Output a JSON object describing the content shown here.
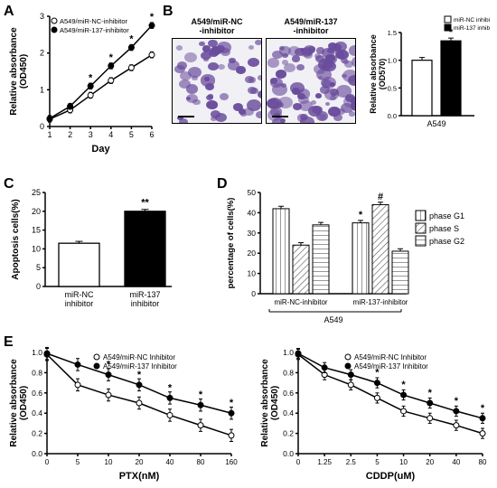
{
  "colors": {
    "axis": "#000000",
    "bg": "#ffffff",
    "black_fill": "#000000",
    "white_fill": "#ffffff",
    "hatch1": "#d0d0d0",
    "hatch2": "#e8e8e8",
    "hatch3": "#f0f0f0",
    "violet": "#6a4c9c"
  },
  "panelA": {
    "label": "A",
    "ylabel": "Relative absorbance\n(OD450)",
    "xlabel": "Day",
    "legend": [
      "A549/miR-NC-inhibitor",
      "A549/miR-137-inhibitor"
    ],
    "x": [
      1,
      2,
      3,
      4,
      5,
      6
    ],
    "y_nc": [
      0.2,
      0.45,
      0.85,
      1.25,
      1.6,
      1.95
    ],
    "y_137": [
      0.22,
      0.55,
      1.1,
      1.65,
      2.15,
      2.75
    ],
    "err": 0.08,
    "ylim": [
      0,
      3
    ],
    "ytick_step": 1,
    "sig_x": [
      3,
      4,
      5,
      6
    ],
    "sig_mark": "*"
  },
  "panelB": {
    "label": "B",
    "titles": [
      "A549/miR-NC\n-inhibitor",
      "A549/miR-137\n-inhibitor"
    ],
    "bar_ylabel": "Relative absorbance\n(OD570)",
    "bar_xlabel": "A549",
    "legend": [
      "miR-NC inhibitor",
      "miR-137 inhibitor"
    ],
    "values": [
      1.0,
      1.35
    ],
    "err": 0.05,
    "ylim": [
      0,
      1.5
    ],
    "sig": "*"
  },
  "panelC": {
    "label": "C",
    "ylabel": "Apoptosis cells(%)",
    "cats": [
      "miR-NC\ninhibitor",
      "miR-137\ninhibitor"
    ],
    "values": [
      11.5,
      20.0
    ],
    "err": 0.5,
    "ylim": [
      0,
      25
    ],
    "ytick_step": 5,
    "sig": "**"
  },
  "panelD": {
    "label": "D",
    "ylabel": "percentage of cells(%)",
    "xlabel": "A549",
    "groups": [
      "miR-NC-inhibitor",
      "miR-137-inhibitor"
    ],
    "legend": [
      "phase G1",
      "phase S",
      "phase G2"
    ],
    "data": {
      "miR-NC-inhibitor": [
        42,
        24,
        34
      ],
      "miR-137-inhibitor": [
        35,
        44,
        21
      ]
    },
    "err": 1.2,
    "ylim": [
      0,
      50
    ],
    "ytick_step": 10,
    "sig": [
      {
        "g": 1,
        "i": 0,
        "m": "*"
      },
      {
        "g": 1,
        "i": 1,
        "m": "#"
      }
    ]
  },
  "panelE": {
    "label": "E",
    "ylabel": "Relative absorbance\n(OD450)",
    "legend": [
      "A549/miR-NC Inhibitor",
      "A549/miR-137 Inhibitor"
    ],
    "ptx": {
      "xlabel": "PTX(nM)",
      "x": [
        0,
        5,
        10,
        20,
        40,
        80,
        160
      ],
      "y_nc": [
        0.98,
        0.68,
        0.58,
        0.5,
        0.38,
        0.28,
        0.18
      ],
      "y_137": [
        0.99,
        0.88,
        0.78,
        0.68,
        0.55,
        0.48,
        0.4
      ],
      "err": 0.06,
      "ylim": [
        0.0,
        1.0
      ],
      "ytick_step": 0.2,
      "sig_x": [
        10,
        20,
        40,
        80,
        160
      ],
      "sig_mark": "*"
    },
    "cddp": {
      "xlabel": "CDDP(uM)",
      "x": [
        0,
        1.25,
        2.5,
        5,
        10,
        20,
        40,
        80
      ],
      "y_nc": [
        0.98,
        0.78,
        0.68,
        0.55,
        0.42,
        0.35,
        0.28,
        0.2
      ],
      "y_137": [
        0.99,
        0.85,
        0.78,
        0.7,
        0.58,
        0.5,
        0.42,
        0.35
      ],
      "err": 0.05,
      "ylim": [
        0.0,
        1.0
      ],
      "ytick_step": 0.2,
      "sig_x": [
        5,
        10,
        20,
        40,
        80
      ],
      "sig_mark": "*"
    }
  }
}
